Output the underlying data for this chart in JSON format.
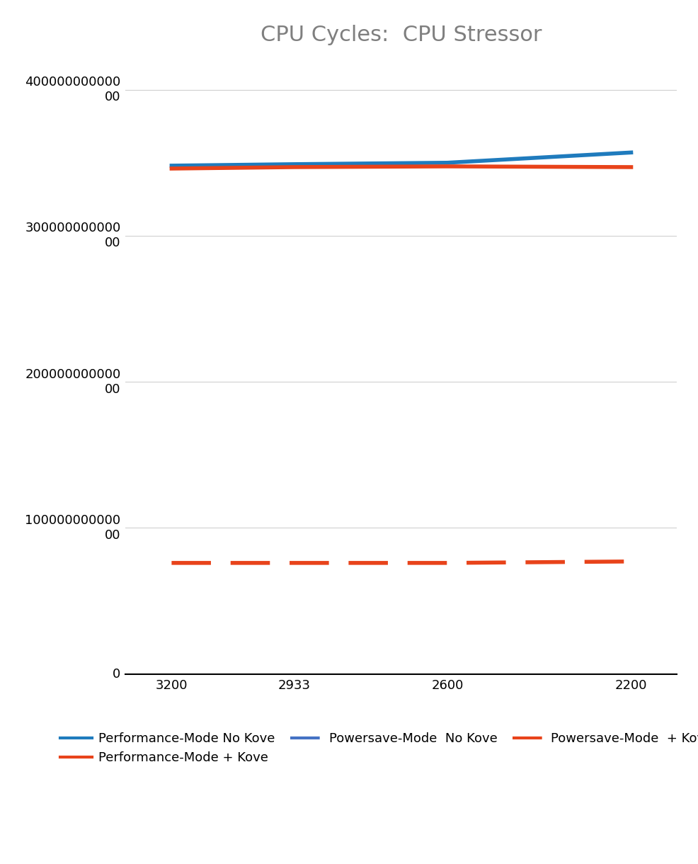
{
  "title": "CPU Cycles:  CPU Stressor",
  "x_values": [
    3200,
    2933,
    2600,
    2200
  ],
  "series": [
    {
      "label": "Performance-Mode No Kove",
      "color": "#1f7bbd",
      "linestyle": "solid",
      "linewidth": 4,
      "values": [
        34800000000000,
        34900000000000,
        35000000000000,
        35700000000000
      ]
    },
    {
      "label": "Performance-Mode + Kove",
      "color": "#e8431a",
      "linestyle": "solid",
      "linewidth": 4,
      "values": [
        34600000000000,
        34700000000000,
        34750000000000,
        34700000000000
      ]
    },
    {
      "label": "Powersave-Mode  No Kove",
      "color": "#4472c4",
      "linestyle": "dashed",
      "linewidth": 4,
      "values": [
        null,
        null,
        null,
        null
      ]
    },
    {
      "label": "Powersave-Mode  + Kove",
      "color": "#e8431a",
      "linestyle": "dashed",
      "linewidth": 4,
      "values": [
        7600000000000,
        7600000000000,
        7600000000000,
        7700000000000
      ]
    }
  ],
  "ylim": [
    0,
    42000000000000
  ],
  "ytick_vals": [
    0,
    10000000000000,
    20000000000000,
    30000000000000,
    40000000000000
  ],
  "ytick_line1": [
    "0",
    "100000000000",
    "200000000000",
    "300000000000",
    "400000000000"
  ],
  "ytick_line2": [
    "",
    "00",
    "00",
    "00",
    "00"
  ],
  "background_color": "#ffffff",
  "grid_color": "#d0d0d0",
  "title_color": "#7f7f7f",
  "title_fontsize": 22,
  "tick_fontsize": 13,
  "legend_fontsize": 13,
  "legend_entries": [
    {
      "label": "Performance-Mode No Kove",
      "color": "#1f7bbd",
      "linestyle": "solid"
    },
    {
      "label": "Performance-Mode + Kove",
      "color": "#e8431a",
      "linestyle": "solid"
    },
    {
      "label": "Powersave-Mode  No Kove",
      "color": "#4472c4",
      "linestyle": "dashed"
    },
    {
      "label": "Powersave-Mode  + Kove",
      "color": "#e8431a",
      "linestyle": "dashed"
    }
  ]
}
